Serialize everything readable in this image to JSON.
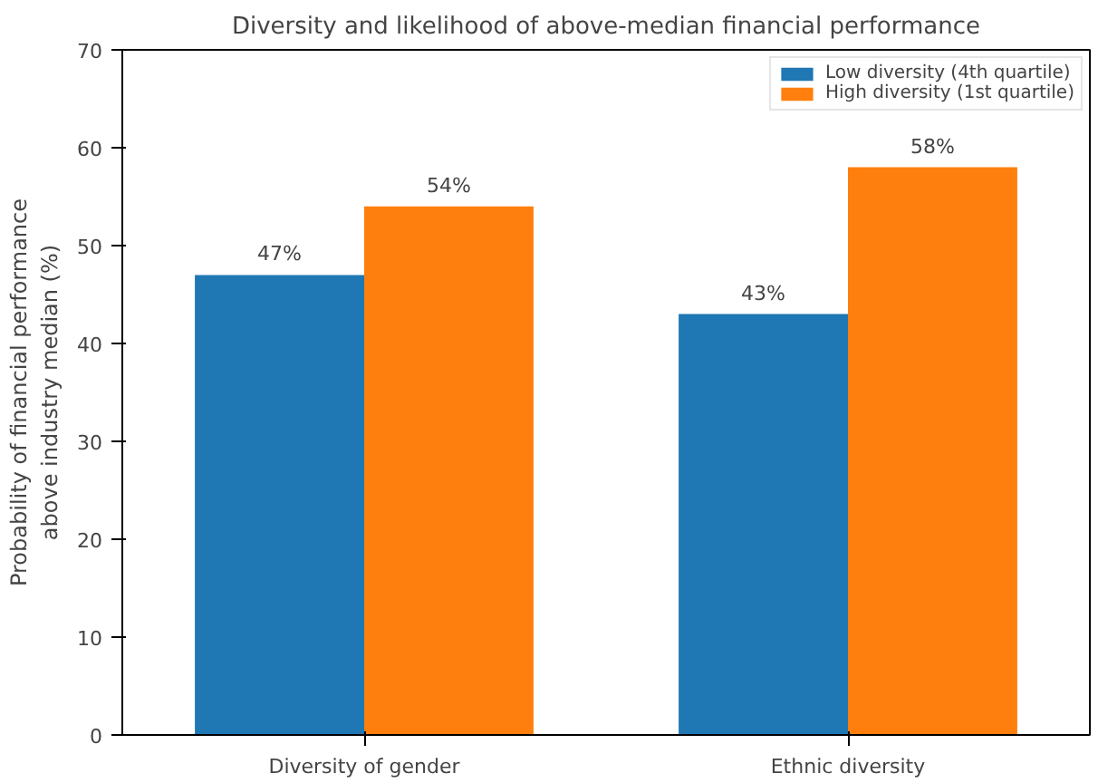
{
  "chart_data": {
    "type": "bar",
    "title": "Diversity and likelihood of above-median financial performance",
    "ylabel": "Probability of financial performance\nabove industry median (%)",
    "categories": [
      "Diversity of gender",
      "Ethnic diversity"
    ],
    "series": [
      {
        "name": "Low diversity (4th quartile)",
        "color": "#1f77b4",
        "values": [
          47,
          43
        ],
        "value_labels": [
          "47%",
          "43%"
        ]
      },
      {
        "name": "High diversity (1st quartile)",
        "color": "#ff7f0e",
        "values": [
          54,
          58
        ],
        "value_labels": [
          "54%",
          "58%"
        ]
      }
    ],
    "ylim": [
      0,
      70
    ],
    "yticks": [
      0,
      10,
      20,
      30,
      40,
      50,
      60,
      70
    ],
    "legend": "top right",
    "grid": false
  }
}
